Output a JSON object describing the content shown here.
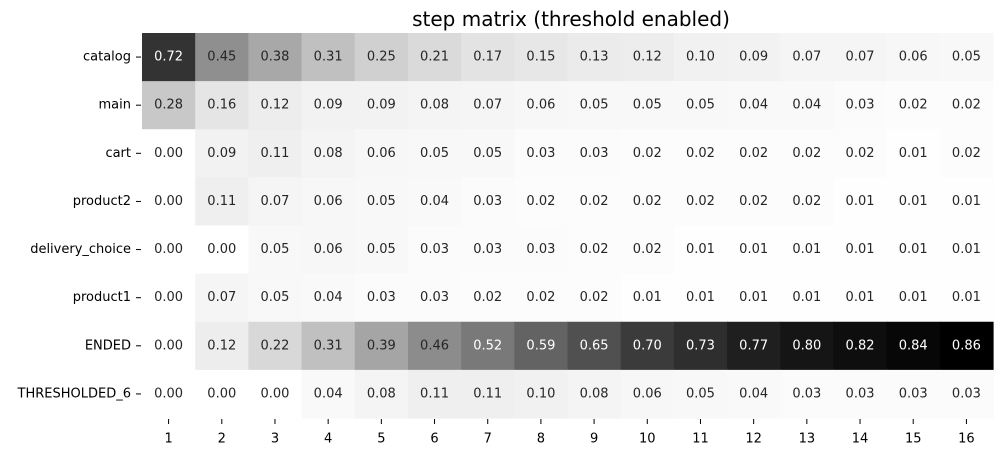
{
  "chart_data": {
    "type": "heatmap",
    "title": "step matrix (threshold enabled)",
    "xlabel": "",
    "ylabel": "",
    "x_categories": [
      "1",
      "2",
      "3",
      "4",
      "5",
      "6",
      "7",
      "8",
      "9",
      "10",
      "11",
      "12",
      "13",
      "14",
      "15",
      "16"
    ],
    "y_categories": [
      "catalog",
      "main",
      "cart",
      "product2",
      "delivery_choice",
      "product1",
      "ENDED",
      "THRESHOLDED_6"
    ],
    "values": [
      [
        0.72,
        0.45,
        0.38,
        0.31,
        0.25,
        0.21,
        0.17,
        0.15,
        0.13,
        0.12,
        0.1,
        0.09,
        0.07,
        0.07,
        0.06,
        0.05
      ],
      [
        0.28,
        0.16,
        0.12,
        0.09,
        0.09,
        0.08,
        0.07,
        0.06,
        0.05,
        0.05,
        0.05,
        0.04,
        0.04,
        0.03,
        0.02,
        0.02
      ],
      [
        0.0,
        0.09,
        0.11,
        0.08,
        0.06,
        0.05,
        0.05,
        0.03,
        0.03,
        0.02,
        0.02,
        0.02,
        0.02,
        0.02,
        0.01,
        0.02
      ],
      [
        0.0,
        0.11,
        0.07,
        0.06,
        0.05,
        0.04,
        0.03,
        0.02,
        0.02,
        0.02,
        0.02,
        0.02,
        0.02,
        0.01,
        0.01,
        0.01
      ],
      [
        0.0,
        0.0,
        0.05,
        0.06,
        0.05,
        0.03,
        0.03,
        0.03,
        0.02,
        0.02,
        0.01,
        0.01,
        0.01,
        0.01,
        0.01,
        0.01
      ],
      [
        0.0,
        0.07,
        0.05,
        0.04,
        0.03,
        0.03,
        0.02,
        0.02,
        0.02,
        0.01,
        0.01,
        0.01,
        0.01,
        0.01,
        0.01,
        0.01
      ],
      [
        0.0,
        0.12,
        0.22,
        0.31,
        0.39,
        0.46,
        0.52,
        0.59,
        0.65,
        0.7,
        0.73,
        0.77,
        0.8,
        0.82,
        0.84,
        0.86
      ],
      [
        0.0,
        0.0,
        0.0,
        0.04,
        0.08,
        0.11,
        0.11,
        0.1,
        0.08,
        0.06,
        0.05,
        0.04,
        0.03,
        0.03,
        0.03,
        0.03
      ]
    ],
    "value_format_decimals": 2,
    "colormap": "Greys",
    "colorbar": false,
    "grid": false,
    "colors": {
      "low": "#ffffff",
      "high": "#000000"
    }
  }
}
